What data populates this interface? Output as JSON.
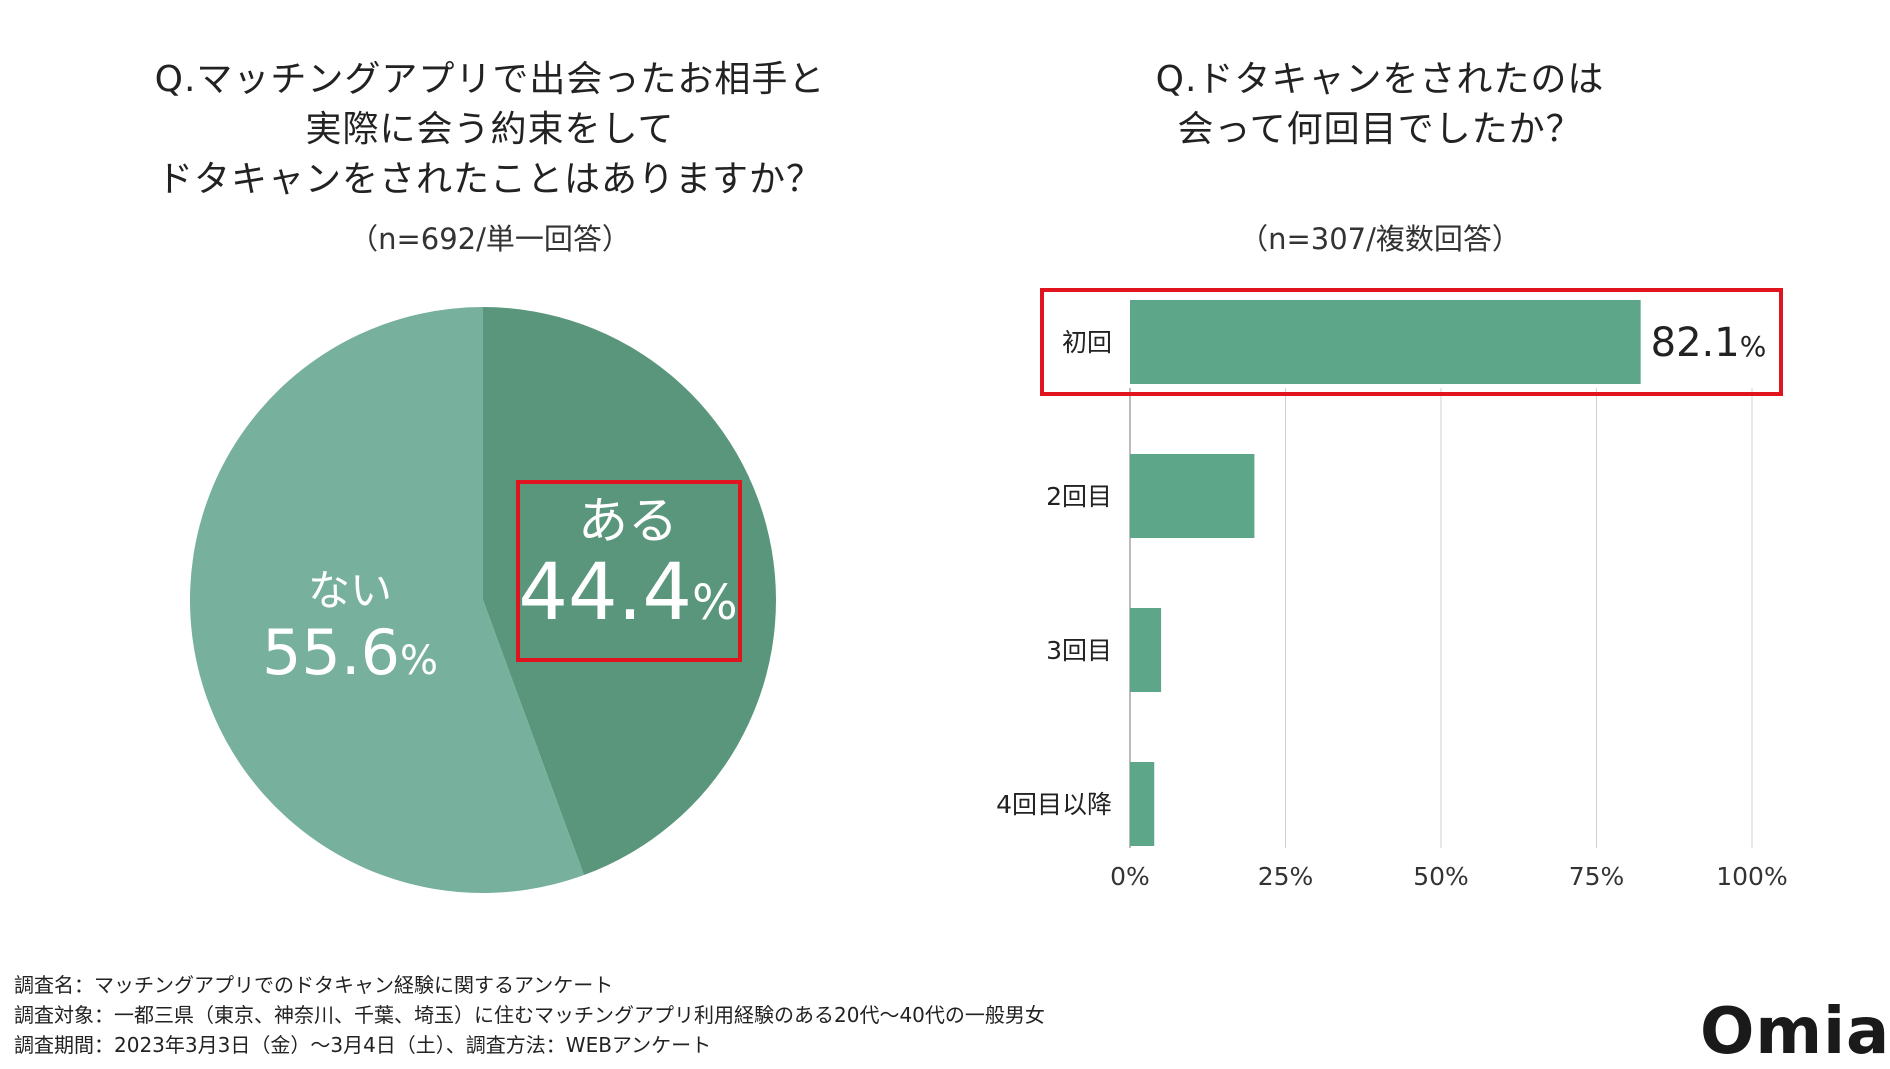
{
  "left_title": [
    "Q.マッチングアプリで出会ったお相手と",
    "実際に会う約束をして",
    "ドタキャンをされたことはありますか？"
  ],
  "left_subtitle": "（n=692/単一回答）",
  "right_title": [
    "Q.ドタキャンをされたのは",
    "会って何回目でしたか？"
  ],
  "right_subtitle": "（n=307/複数回答）",
  "colors": {
    "bar": "#5da68a",
    "pie_aru": "#5a967c",
    "pie_nai": "#77b09c",
    "highlight": "#e0141e",
    "grid": "#d0d0d0"
  },
  "chart_data": [
    {
      "type": "pie",
      "title": "Q.マッチングアプリで出会ったお相手と実際に会う約束をしてドタキャンをされたことはありますか？",
      "subtitle": "（n=692/単一回答）",
      "slices": [
        {
          "label": "ある",
          "value": 44.4,
          "display": "44.4",
          "unit": "%"
        },
        {
          "label": "ない",
          "value": 55.6,
          "display": "55.6",
          "unit": "%"
        }
      ],
      "highlight": "ある"
    },
    {
      "type": "bar",
      "orientation": "horizontal",
      "title": "Q.ドタキャンをされたのは会って何回目でしたか？",
      "subtitle": "（n=307/複数回答）",
      "categories": [
        "初回",
        "2回目",
        "3回目",
        "4回目以降"
      ],
      "values": [
        82.1,
        20.0,
        5.0,
        3.9
      ],
      "data_label": {
        "category": "初回",
        "value": "82.1",
        "unit": "%"
      },
      "xlim": [
        0,
        100
      ],
      "ticks": [
        "0%",
        "25%",
        "50%",
        "75%",
        "100%"
      ],
      "grid": true,
      "highlight": "初回"
    }
  ],
  "footer": [
    "調査名：マッチングアプリでのドタキャン経験に関するアンケート",
    "調査対象：一都三県（東京、神奈川、千葉、埼玉）に住むマッチングアプリ利用経験のある20代〜40代の一般男女",
    "調査期間：2023年3月3日（金）〜3月4日（土）、調査方法：WEBアンケート"
  ],
  "logo": "Omiai"
}
